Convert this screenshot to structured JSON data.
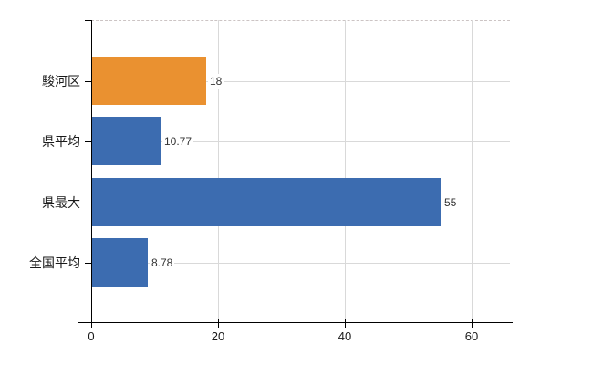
{
  "colors": {
    "bar_orange": "#ea9130",
    "bar_blue": "#3c6cb0",
    "gridline": "#d9d9d9",
    "plot_top_border": "#ccc4c4",
    "axis": "#000000",
    "category_text": "#1a1a1a",
    "value_text": "#333333",
    "background": "#ffffff"
  },
  "chart_data": {
    "type": "bar",
    "orientation": "horizontal",
    "title": "",
    "xlabel": "",
    "ylabel": "",
    "categories": [
      "駿河区",
      "県平均",
      "県最大",
      "全国平均"
    ],
    "values": [
      18,
      10.77,
      55,
      8.78
    ],
    "value_labels": [
      "18",
      "10.77",
      "55",
      "8.78"
    ],
    "bar_colors": [
      "#ea9130",
      "#3c6cb0",
      "#3c6cb0",
      "#3c6cb0"
    ],
    "xlim": [
      0,
      60
    ],
    "x_ticks": [
      0,
      20,
      40,
      60
    ],
    "x_tick_labels": [
      "0",
      "20",
      "40",
      "60"
    ],
    "grid": true,
    "legend": "none"
  }
}
